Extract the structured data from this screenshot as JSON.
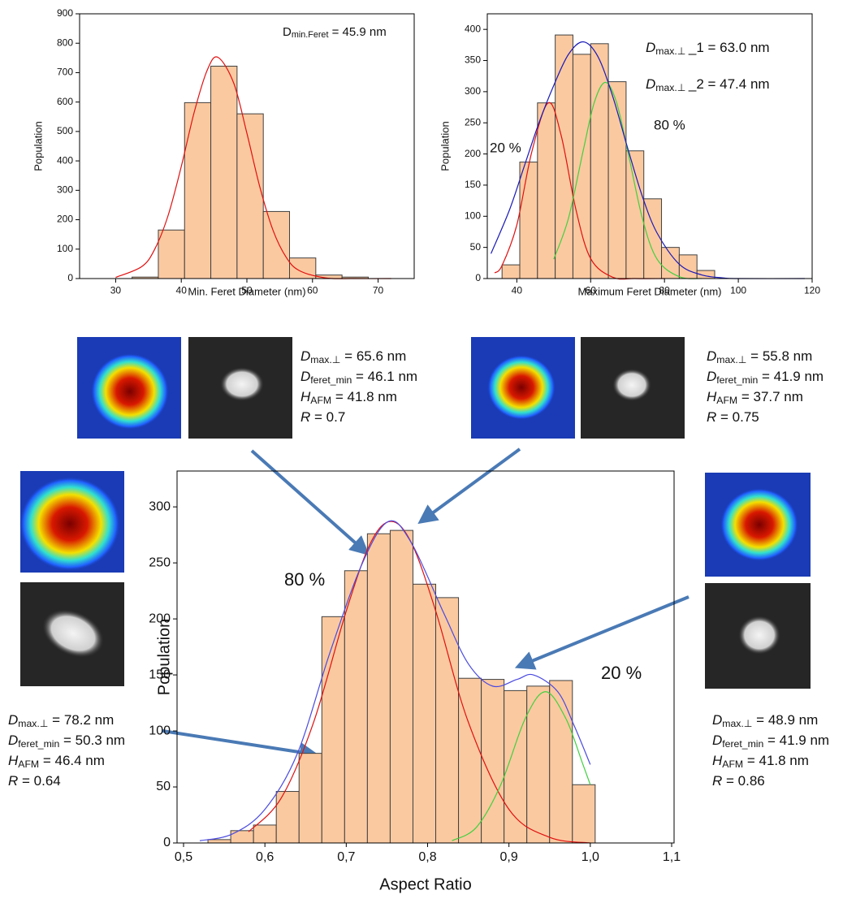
{
  "chart_data": [
    {
      "type": "histogram",
      "xlabel": "Min. Feret Diameter (nm)",
      "ylabel": "Population",
      "bins": [
        32.5,
        36.5,
        40.5,
        44.5,
        48.5,
        52.5,
        56.5,
        60.5,
        64.5,
        68.5
      ],
      "values": [
        5,
        165,
        598,
        722,
        560,
        228,
        70,
        12,
        5
      ],
      "color": "#fbc9a0",
      "edge_color": "#404040",
      "xlim": [
        24.5,
        75.5
      ],
      "ylim": [
        0,
        900
      ],
      "xticks": [
        30,
        40,
        50,
        60,
        70
      ],
      "yticks": [
        0,
        100,
        200,
        300,
        400,
        500,
        600,
        700,
        800,
        900
      ],
      "fits": [
        {
          "color": "#e01010",
          "x": [
            30,
            34,
            36,
            38,
            40,
            42,
            44,
            45.6,
            48,
            50,
            52,
            54,
            56,
            58,
            62,
            66,
            72
          ],
          "values": [
            4,
            41,
            102,
            215,
            381,
            568,
            711,
            752,
            664,
            494,
            309,
            163,
            72,
            27,
            2,
            0,
            0
          ]
        }
      ],
      "annotations": [
        {
          "symbol": "D",
          "sub": "min.Feret",
          "text": " = 45.9 nm"
        }
      ],
      "labels": []
    },
    {
      "type": "histogram",
      "xlabel": "Maximum Feret Diameter (nm)",
      "ylabel": "Population",
      "bins": [
        36,
        40.8,
        45.6,
        50.4,
        55.2,
        60,
        64.8,
        69.6,
        74.4,
        79.2,
        84,
        88.8,
        93.6
      ],
      "values": [
        22,
        187,
        282,
        391,
        360,
        377,
        316,
        205,
        128,
        50,
        38,
        13
      ],
      "color": "#fbc9a0",
      "edge_color": "#404040",
      "xlim": [
        32,
        120
      ],
      "ylim": [
        0,
        425
      ],
      "xticks": [
        40,
        60,
        80,
        100,
        120
      ],
      "yticks": [
        0,
        50,
        100,
        150,
        200,
        250,
        300,
        350,
        400
      ],
      "fits": [
        {
          "color": "#e01010",
          "x": [
            34,
            36,
            40,
            44,
            48.5,
            52,
            56,
            60,
            66,
            72,
            80
          ],
          "values": [
            9,
            21,
            86,
            202,
            282,
            230,
            111,
            32,
            2,
            0,
            0
          ]
        },
        {
          "color": "#40d040",
          "x": [
            50,
            54,
            58,
            61,
            64,
            67,
            70,
            74,
            78,
            84,
            90
          ],
          "values": [
            31,
            97,
            206,
            283,
            315,
            283,
            206,
            97,
            31,
            3,
            0
          ]
        },
        {
          "color": "#1a1ab8",
          "x": [
            33,
            38,
            42,
            46,
            50,
            54,
            58,
            62,
            66,
            70,
            74,
            78,
            84,
            90,
            96,
            100,
            118
          ],
          "values": [
            40,
            110,
            180,
            250,
            310,
            360,
            380,
            356,
            292,
            210,
            132,
            73,
            23,
            6,
            1,
            0,
            0
          ]
        }
      ],
      "annotations": [
        {
          "symbol": "D",
          "sub": "max.⊥ ",
          "text": "_1 = 63.0 nm"
        },
        {
          "symbol": "D",
          "sub": "max.⊥ ",
          "text": "_2 = 47.4 nm"
        }
      ],
      "labels": [
        "20 %",
        "80 %"
      ]
    },
    {
      "type": "histogram",
      "xlabel": "Aspect Ratio",
      "ylabel": "Population",
      "bins": [
        0.53,
        0.558,
        0.586,
        0.614,
        0.642,
        0.67,
        0.698,
        0.726,
        0.754,
        0.782,
        0.81,
        0.838,
        0.866,
        0.894,
        0.922,
        0.95,
        0.978,
        1.006
      ],
      "values": [
        3,
        11,
        16,
        46,
        80,
        202,
        243,
        276,
        279,
        231,
        219,
        147,
        146,
        136,
        140,
        145,
        52
      ],
      "color": "#fbc9a0",
      "edge_color": "#404040",
      "xlim": [
        0.492,
        1.103
      ],
      "ylim": [
        0,
        332
      ],
      "xticks": [
        {
          "value": 0.5,
          "label": "0,5"
        },
        {
          "value": 0.6,
          "label": "0,6"
        },
        {
          "value": 0.7,
          "label": "0,7"
        },
        {
          "value": 0.8,
          "label": "0,8"
        },
        {
          "value": 0.9,
          "label": "0,9"
        },
        {
          "value": 1.0,
          "label": "1,0"
        },
        {
          "value": 1.1,
          "label": "1,1"
        }
      ],
      "yticks": [
        0,
        50,
        100,
        150,
        200,
        250,
        300
      ],
      "fits": [
        {
          "color": "#e01010",
          "x": [
            0.58,
            0.62,
            0.66,
            0.7,
            0.73,
            0.755,
            0.78,
            0.81,
            0.85,
            0.9,
            0.95,
            1.0
          ],
          "values": [
            10,
            40,
            108,
            207,
            268,
            287,
            268,
            207,
            108,
            30,
            5,
            0
          ]
        },
        {
          "color": "#40d040",
          "x": [
            0.83,
            0.86,
            0.89,
            0.92,
            0.945,
            0.97,
            0.99,
            1.0
          ],
          "values": [
            2,
            14,
            52,
            111,
            135,
            111,
            72,
            52
          ]
        },
        {
          "color": "#4a4ae0",
          "x": [
            0.52,
            0.56,
            0.6,
            0.64,
            0.68,
            0.72,
            0.752,
            0.78,
            0.82,
            0.85,
            0.88,
            0.91,
            0.93,
            0.96,
            0.98,
            1.0
          ],
          "values": [
            2,
            8,
            30,
            80,
            170,
            250,
            287,
            268,
            205,
            160,
            140,
            146,
            150,
            135,
            105,
            70
          ]
        }
      ],
      "annotations": [],
      "labels": [
        "80 %",
        "20 %"
      ]
    }
  ],
  "particles": [
    {
      "lines": [
        {
          "symbol": "D",
          "sub": "max.⊥",
          "text": " = 65.6 nm"
        },
        {
          "symbol": "D",
          "sub": "feret_min",
          "text": " = 46.1 nm"
        },
        {
          "symbol": "H",
          "sub": "AFM",
          "text": " = 41.8 nm"
        },
        {
          "symbol": "R",
          "sub": "",
          "text": " = 0.7"
        }
      ]
    },
    {
      "lines": [
        {
          "symbol": "D",
          "sub": "max.⊥",
          "text": " = 55.8 nm"
        },
        {
          "symbol": "D",
          "sub": "feret_min",
          "text": " = 41.9 nm"
        },
        {
          "symbol": "H",
          "sub": "AFM",
          "text": " = 37.7 nm"
        },
        {
          "symbol": "R",
          "sub": "",
          "text": " = 0.75"
        }
      ]
    },
    {
      "lines": [
        {
          "symbol": "D",
          "sub": "max.⊥",
          "text": " = 78.2 nm"
        },
        {
          "symbol": "D",
          "sub": "feret_min",
          "text": " = 50.3 nm"
        },
        {
          "symbol": "H",
          "sub": "AFM",
          "text": " = 46.4 nm"
        },
        {
          "symbol": "R",
          "sub": "",
          "text": " = 0.64"
        }
      ]
    },
    {
      "lines": [
        {
          "symbol": "D",
          "sub": "max.⊥",
          "text": " = 48.9 nm"
        },
        {
          "symbol": "D",
          "sub": "feret_min",
          "text": " = 41.9 nm"
        },
        {
          "symbol": "H",
          "sub": "AFM",
          "text": " = 41.8 nm"
        },
        {
          "symbol": "R",
          "sub": "",
          "text": " = 0.86"
        }
      ]
    }
  ]
}
